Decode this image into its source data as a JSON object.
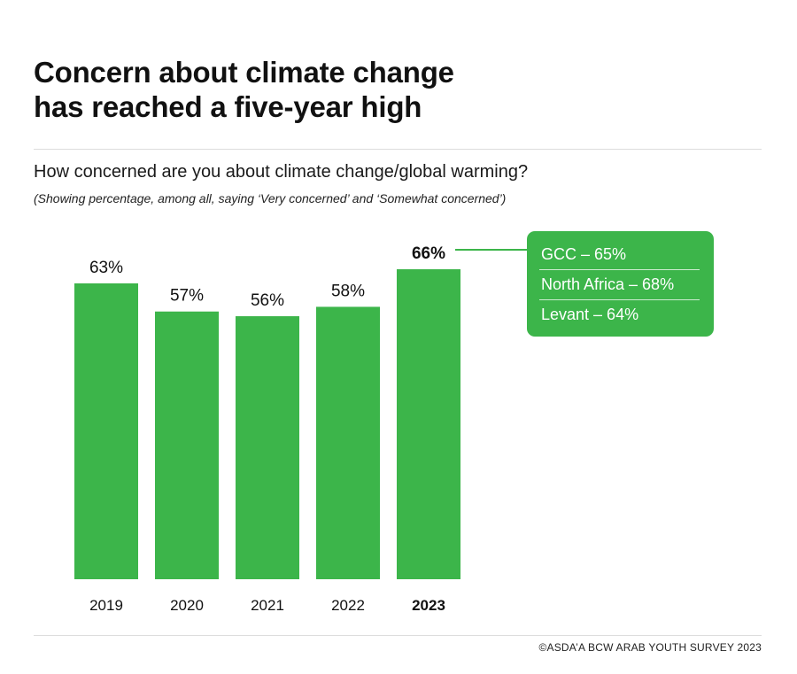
{
  "header": {
    "title_line1": "Concern about climate change",
    "title_line2": "has reached a five-year high",
    "question": "How concerned are you about climate change/global warming?",
    "note": "(Showing percentage, among all, saying ‘Very concerned’ and ‘Somewhat concerned’)"
  },
  "chart_data": {
    "type": "bar",
    "categories": [
      "2019",
      "2020",
      "2021",
      "2022",
      "2023"
    ],
    "values": [
      63,
      57,
      56,
      58,
      66
    ],
    "value_labels": [
      "63%",
      "57%",
      "56%",
      "58%",
      "66%"
    ],
    "highlight_category": "2023",
    "bar_color": "#3cb54a",
    "title": "How concerned are you about climate change/global warming?",
    "xlabel": "",
    "ylabel": "",
    "grid": false,
    "legend": "none",
    "annotation": {
      "attached_to": "2023",
      "items": [
        {
          "label": "GCC",
          "value_text": "GCC  – 65%",
          "value": 65
        },
        {
          "label": "North Africa",
          "value_text": "North Africa – 68%",
          "value": 68
        },
        {
          "label": "Levant",
          "value_text": "Levant – 64%",
          "value": 64
        }
      ]
    }
  },
  "footer": {
    "credit": "©ASDA’A BCW ARAB YOUTH SURVEY 2023"
  },
  "colors": {
    "accent": "#3cb54a",
    "text": "#111111",
    "rule": "#dddddd"
  }
}
